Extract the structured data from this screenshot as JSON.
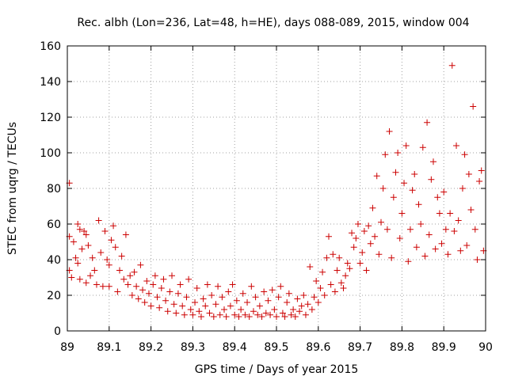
{
  "chart_data": {
    "type": "scatter",
    "title": "Rec. albh (Lon=236, Lat=48, h=HE), days 088-089, 2015, window 004",
    "xlabel": "GPS time / Days of year 2015",
    "ylabel": "STEC from uqrg / TECUs",
    "xlim": [
      89,
      90
    ],
    "ylim": [
      0,
      160
    ],
    "xticks": [
      89,
      89.1,
      89.2,
      89.3,
      89.4,
      89.5,
      89.6,
      89.7,
      89.8,
      89.9,
      90
    ],
    "xtick_labels": [
      "89",
      "89.1",
      "89.2",
      "89.3",
      "89.4",
      "89.5",
      "89.6",
      "89.7",
      "89.8",
      "89.9",
      "90"
    ],
    "yticks": [
      0,
      20,
      40,
      60,
      80,
      100,
      120,
      140,
      160
    ],
    "ytick_labels": [
      "0",
      "20",
      "40",
      "60",
      "80",
      "100",
      "120",
      "140",
      "160"
    ],
    "grid": true,
    "marker": "+",
    "color": "#cc0000",
    "points": [
      [
        89.005,
        83
      ],
      [
        89.005,
        53
      ],
      [
        89.005,
        34
      ],
      [
        89.01,
        30
      ],
      [
        89.015,
        50
      ],
      [
        89.02,
        41
      ],
      [
        89.025,
        60
      ],
      [
        89.025,
        38
      ],
      [
        89.03,
        57
      ],
      [
        89.03,
        29
      ],
      [
        89.035,
        46
      ],
      [
        89.04,
        56
      ],
      [
        89.045,
        54
      ],
      [
        89.045,
        27
      ],
      [
        89.05,
        48
      ],
      [
        89.055,
        31
      ],
      [
        89.06,
        41
      ],
      [
        89.065,
        34
      ],
      [
        89.07,
        26
      ],
      [
        89.075,
        62
      ],
      [
        89.08,
        44
      ],
      [
        89.085,
        25
      ],
      [
        89.09,
        56
      ],
      [
        89.095,
        40
      ],
      [
        89.1,
        37
      ],
      [
        89.1,
        25
      ],
      [
        89.105,
        51
      ],
      [
        89.11,
        59
      ],
      [
        89.115,
        47
      ],
      [
        89.12,
        22
      ],
      [
        89.125,
        34
      ],
      [
        89.13,
        42
      ],
      [
        89.135,
        29
      ],
      [
        89.14,
        54
      ],
      [
        89.145,
        26
      ],
      [
        89.15,
        31
      ],
      [
        89.155,
        20
      ],
      [
        89.16,
        33
      ],
      [
        89.165,
        25
      ],
      [
        89.17,
        18
      ],
      [
        89.175,
        37
      ],
      [
        89.18,
        23
      ],
      [
        89.185,
        16
      ],
      [
        89.19,
        28
      ],
      [
        89.195,
        21
      ],
      [
        89.2,
        14
      ],
      [
        89.205,
        26
      ],
      [
        89.21,
        31
      ],
      [
        89.215,
        19
      ],
      [
        89.22,
        13
      ],
      [
        89.225,
        24
      ],
      [
        89.23,
        29
      ],
      [
        89.235,
        17
      ],
      [
        89.24,
        11
      ],
      [
        89.245,
        22
      ],
      [
        89.25,
        31
      ],
      [
        89.255,
        15
      ],
      [
        89.26,
        10
      ],
      [
        89.265,
        21
      ],
      [
        89.27,
        26
      ],
      [
        89.275,
        14
      ],
      [
        89.28,
        9
      ],
      [
        89.285,
        19
      ],
      [
        89.29,
        29
      ],
      [
        89.295,
        12
      ],
      [
        89.3,
        9
      ],
      [
        89.305,
        16
      ],
      [
        89.31,
        24
      ],
      [
        89.315,
        11
      ],
      [
        89.32,
        8
      ],
      [
        89.325,
        18
      ],
      [
        89.33,
        14
      ],
      [
        89.335,
        26
      ],
      [
        89.34,
        10
      ],
      [
        89.345,
        20
      ],
      [
        89.35,
        8
      ],
      [
        89.355,
        15
      ],
      [
        89.36,
        25
      ],
      [
        89.365,
        9
      ],
      [
        89.37,
        19
      ],
      [
        89.375,
        12
      ],
      [
        89.38,
        8
      ],
      [
        89.385,
        22
      ],
      [
        89.39,
        14
      ],
      [
        89.395,
        26
      ],
      [
        89.4,
        9
      ],
      [
        89.405,
        17
      ],
      [
        89.41,
        8
      ],
      [
        89.415,
        12
      ],
      [
        89.42,
        21
      ],
      [
        89.425,
        9
      ],
      [
        89.43,
        16
      ],
      [
        89.435,
        8
      ],
      [
        89.44,
        25
      ],
      [
        89.445,
        11
      ],
      [
        89.45,
        19
      ],
      [
        89.455,
        9
      ],
      [
        89.46,
        14
      ],
      [
        89.465,
        8
      ],
      [
        89.47,
        22
      ],
      [
        89.475,
        10
      ],
      [
        89.48,
        17
      ],
      [
        89.485,
        9
      ],
      [
        89.49,
        23
      ],
      [
        89.495,
        12
      ],
      [
        89.5,
        8
      ],
      [
        89.505,
        19
      ],
      [
        89.51,
        25
      ],
      [
        89.515,
        10
      ],
      [
        89.52,
        8
      ],
      [
        89.525,
        16
      ],
      [
        89.53,
        21
      ],
      [
        89.535,
        9
      ],
      [
        89.54,
        12
      ],
      [
        89.545,
        8
      ],
      [
        89.55,
        18
      ],
      [
        89.555,
        11
      ],
      [
        89.56,
        14
      ],
      [
        89.565,
        20
      ],
      [
        89.57,
        9
      ],
      [
        89.575,
        15
      ],
      [
        89.58,
        36
      ],
      [
        89.585,
        12
      ],
      [
        89.59,
        19
      ],
      [
        89.595,
        28
      ],
      [
        89.6,
        16
      ],
      [
        89.605,
        24
      ],
      [
        89.61,
        33
      ],
      [
        89.615,
        20
      ],
      [
        89.62,
        41
      ],
      [
        89.625,
        53
      ],
      [
        89.63,
        26
      ],
      [
        89.635,
        43
      ],
      [
        89.64,
        22
      ],
      [
        89.645,
        34
      ],
      [
        89.65,
        41
      ],
      [
        89.655,
        27
      ],
      [
        89.66,
        24
      ],
      [
        89.665,
        31
      ],
      [
        89.67,
        38
      ],
      [
        89.675,
        35
      ],
      [
        89.68,
        55
      ],
      [
        89.685,
        47
      ],
      [
        89.69,
        52
      ],
      [
        89.695,
        60
      ],
      [
        89.7,
        38
      ],
      [
        89.705,
        44
      ],
      [
        89.71,
        56
      ],
      [
        89.715,
        34
      ],
      [
        89.72,
        59
      ],
      [
        89.725,
        49
      ],
      [
        89.73,
        69
      ],
      [
        89.735,
        53
      ],
      [
        89.74,
        87
      ],
      [
        89.745,
        43
      ],
      [
        89.75,
        61
      ],
      [
        89.755,
        80
      ],
      [
        89.76,
        99
      ],
      [
        89.765,
        57
      ],
      [
        89.77,
        112
      ],
      [
        89.775,
        41
      ],
      [
        89.78,
        75
      ],
      [
        89.785,
        89
      ],
      [
        89.79,
        100
      ],
      [
        89.795,
        52
      ],
      [
        89.8,
        66
      ],
      [
        89.805,
        83
      ],
      [
        89.81,
        104
      ],
      [
        89.815,
        39
      ],
      [
        89.82,
        57
      ],
      [
        89.825,
        79
      ],
      [
        89.83,
        88
      ],
      [
        89.835,
        47
      ],
      [
        89.84,
        71
      ],
      [
        89.845,
        60
      ],
      [
        89.85,
        103
      ],
      [
        89.855,
        42
      ],
      [
        89.86,
        117
      ],
      [
        89.865,
        54
      ],
      [
        89.87,
        85
      ],
      [
        89.875,
        95
      ],
      [
        89.88,
        46
      ],
      [
        89.885,
        75
      ],
      [
        89.89,
        66
      ],
      [
        89.895,
        49
      ],
      [
        89.9,
        78
      ],
      [
        89.905,
        57
      ],
      [
        89.91,
        43
      ],
      [
        89.915,
        66
      ],
      [
        89.92,
        149
      ],
      [
        89.925,
        56
      ],
      [
        89.93,
        104
      ],
      [
        89.935,
        62
      ],
      [
        89.94,
        45
      ],
      [
        89.945,
        80
      ],
      [
        89.95,
        99
      ],
      [
        89.955,
        48
      ],
      [
        89.96,
        88
      ],
      [
        89.965,
        68
      ],
      [
        89.97,
        126
      ],
      [
        89.975,
        57
      ],
      [
        89.98,
        40
      ],
      [
        89.985,
        84
      ],
      [
        89.99,
        90
      ],
      [
        89.995,
        45
      ]
    ]
  }
}
